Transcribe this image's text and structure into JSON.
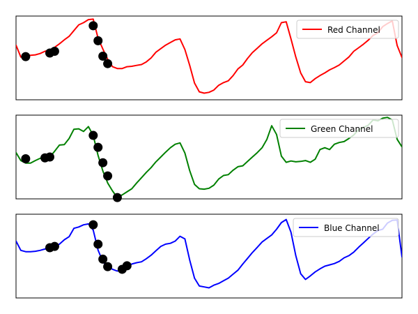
{
  "figure": {
    "background": "#ffffff",
    "marker_color": "#000000"
  },
  "chart_data": [
    {
      "type": "line",
      "title": "",
      "xlabel": "",
      "ylabel": "",
      "xlim": [
        0,
        80
      ],
      "ylim": [
        -0.85,
        1.05
      ],
      "grid": false,
      "axis_ticks": false,
      "legend_position": "upper right",
      "series": [
        {
          "name": "Red Channel",
          "color": "#ff0000",
          "x": [
            0,
            1,
            2,
            3,
            4,
            5,
            6,
            7,
            8,
            9,
            10,
            11,
            12,
            13,
            14,
            15,
            16,
            17,
            18,
            19,
            20,
            21,
            22,
            23,
            24,
            25,
            26,
            27,
            28,
            29,
            30,
            31,
            32,
            33,
            34,
            35,
            36,
            37,
            38,
            39,
            40,
            41,
            42,
            43,
            44,
            45,
            46,
            47,
            48,
            49,
            50,
            51,
            52,
            53,
            54,
            55,
            56,
            57,
            58,
            59,
            60,
            61,
            62,
            63,
            64,
            65,
            66,
            67,
            68,
            69,
            70,
            71,
            72,
            73,
            74,
            75,
            76,
            77,
            78,
            79,
            80
          ],
          "y": [
            0.39,
            0.12,
            0.13,
            0.16,
            0.17,
            0.2,
            0.25,
            0.28,
            0.34,
            0.42,
            0.51,
            0.59,
            0.72,
            0.85,
            0.9,
            0.97,
            0.98,
            0.55,
            0.3,
            0.07,
            -0.1,
            -0.14,
            -0.14,
            -0.1,
            -0.09,
            -0.07,
            -0.05,
            0.01,
            0.1,
            0.23,
            0.31,
            0.39,
            0.45,
            0.51,
            0.53,
            0.29,
            -0.07,
            -0.47,
            -0.67,
            -0.7,
            -0.68,
            -0.63,
            -0.52,
            -0.46,
            -0.42,
            -0.3,
            -0.15,
            -0.06,
            0.09,
            0.22,
            0.32,
            0.42,
            0.5,
            0.58,
            0.67,
            0.9,
            0.92,
            0.53,
            0.12,
            -0.24,
            -0.44,
            -0.46,
            -0.37,
            -0.3,
            -0.24,
            -0.17,
            -0.12,
            -0.06,
            0.03,
            0.12,
            0.25,
            0.33,
            0.41,
            0.5,
            0.61,
            0.67,
            0.81,
            0.88,
            0.94,
            0.38,
            0.11
          ],
          "marked_points": [
            {
              "x": 2,
              "y": 0.13
            },
            {
              "x": 7,
              "y": 0.21
            },
            {
              "x": 8,
              "y": 0.25
            },
            {
              "x": 16,
              "y": 0.83
            },
            {
              "x": 17,
              "y": 0.49
            },
            {
              "x": 18,
              "y": 0.14
            },
            {
              "x": 19,
              "y": -0.03
            }
          ]
        }
      ]
    },
    {
      "type": "line",
      "title": "",
      "xlabel": "",
      "ylabel": "",
      "xlim": [
        0,
        80
      ],
      "ylim": [
        -0.85,
        1.05
      ],
      "grid": false,
      "axis_ticks": false,
      "legend_position": "upper right",
      "series": [
        {
          "name": "Green Channel",
          "color": "#008000",
          "x": [
            0,
            1,
            2,
            3,
            4,
            5,
            6,
            7,
            8,
            9,
            10,
            11,
            12,
            13,
            14,
            15,
            16,
            17,
            18,
            19,
            20,
            21,
            22,
            23,
            24,
            25,
            26,
            27,
            28,
            29,
            30,
            31,
            32,
            33,
            34,
            35,
            36,
            37,
            38,
            39,
            40,
            41,
            42,
            43,
            44,
            45,
            46,
            47,
            48,
            49,
            50,
            51,
            52,
            53,
            54,
            55,
            56,
            57,
            58,
            59,
            60,
            61,
            62,
            63,
            64,
            65,
            66,
            67,
            68,
            69,
            70,
            71,
            72,
            73,
            74,
            75,
            76,
            77,
            78,
            79,
            80
          ],
          "y": [
            0.2,
            0.02,
            -0.04,
            -0.04,
            0.02,
            0.07,
            0.08,
            0.1,
            0.23,
            0.37,
            0.38,
            0.52,
            0.73,
            0.74,
            0.68,
            0.79,
            0.59,
            0.14,
            -0.22,
            -0.49,
            -0.67,
            -0.82,
            -0.76,
            -0.69,
            -0.62,
            -0.49,
            -0.37,
            -0.25,
            -0.14,
            -0.01,
            0.1,
            0.21,
            0.31,
            0.39,
            0.42,
            0.19,
            -0.21,
            -0.52,
            -0.62,
            -0.63,
            -0.61,
            -0.54,
            -0.4,
            -0.32,
            -0.3,
            -0.2,
            -0.12,
            -0.1,
            0.0,
            0.1,
            0.2,
            0.31,
            0.5,
            0.81,
            0.61,
            0.12,
            -0.02,
            0.01,
            -0.01,
            0.0,
            0.02,
            -0.02,
            0.05,
            0.27,
            0.31,
            0.27,
            0.39,
            0.43,
            0.45,
            0.52,
            0.6,
            0.72,
            0.77,
            0.82,
            0.94,
            0.92,
            0.98,
            1.0,
            0.94,
            0.5,
            0.33
          ],
          "marked_points": [
            {
              "x": 2,
              "y": 0.06
            },
            {
              "x": 6,
              "y": 0.08
            },
            {
              "x": 7,
              "y": 0.1
            },
            {
              "x": 16,
              "y": 0.59
            },
            {
              "x": 17,
              "y": 0.32
            },
            {
              "x": 18,
              "y": -0.03
            },
            {
              "x": 19,
              "y": -0.33
            },
            {
              "x": 21,
              "y": -0.82
            }
          ]
        }
      ]
    },
    {
      "type": "line",
      "title": "",
      "xlabel": "",
      "ylabel": "",
      "xlim": [
        0,
        80
      ],
      "ylim": [
        -0.85,
        1.05
      ],
      "grid": false,
      "axis_ticks": false,
      "legend_position": "upper right",
      "series": [
        {
          "name": "Blue Channel",
          "color": "#0000ff",
          "x": [
            0,
            1,
            2,
            3,
            4,
            5,
            6,
            7,
            8,
            9,
            10,
            11,
            12,
            13,
            14,
            15,
            16,
            17,
            18,
            19,
            20,
            21,
            22,
            23,
            24,
            25,
            26,
            27,
            28,
            29,
            30,
            31,
            32,
            33,
            34,
            35,
            36,
            37,
            38,
            39,
            40,
            41,
            42,
            43,
            44,
            45,
            46,
            47,
            48,
            49,
            50,
            51,
            52,
            53,
            54,
            55,
            56,
            57,
            58,
            59,
            60,
            61,
            62,
            63,
            64,
            65,
            66,
            67,
            68,
            69,
            70,
            71,
            72,
            73,
            74,
            75,
            76,
            77,
            78,
            79,
            80
          ],
          "y": [
            0.44,
            0.23,
            0.2,
            0.2,
            0.21,
            0.23,
            0.26,
            0.29,
            0.31,
            0.37,
            0.47,
            0.54,
            0.73,
            0.76,
            0.81,
            0.83,
            0.69,
            0.24,
            -0.03,
            -0.14,
            -0.2,
            -0.24,
            -0.18,
            -0.14,
            -0.08,
            -0.05,
            -0.03,
            0.04,
            0.12,
            0.22,
            0.32,
            0.37,
            0.39,
            0.44,
            0.55,
            0.49,
            0.01,
            -0.4,
            -0.58,
            -0.6,
            -0.62,
            -0.56,
            -0.52,
            -0.46,
            -0.4,
            -0.31,
            -0.22,
            -0.08,
            0.05,
            0.18,
            0.3,
            0.42,
            0.5,
            0.58,
            0.71,
            0.86,
            0.93,
            0.64,
            0.11,
            -0.3,
            -0.43,
            -0.35,
            -0.26,
            -0.19,
            -0.13,
            -0.1,
            -0.07,
            -0.02,
            0.06,
            0.11,
            0.19,
            0.3,
            0.4,
            0.5,
            0.6,
            0.68,
            0.71,
            0.85,
            0.91,
            0.92,
            0.08
          ],
          "marked_points": [
            {
              "x": 7,
              "y": 0.29
            },
            {
              "x": 8,
              "y": 0.32
            },
            {
              "x": 16,
              "y": 0.81
            },
            {
              "x": 17,
              "y": 0.37
            },
            {
              "x": 18,
              "y": 0.03
            },
            {
              "x": 19,
              "y": -0.14
            },
            {
              "x": 22,
              "y": -0.2
            },
            {
              "x": 23,
              "y": -0.12
            }
          ]
        }
      ]
    }
  ]
}
